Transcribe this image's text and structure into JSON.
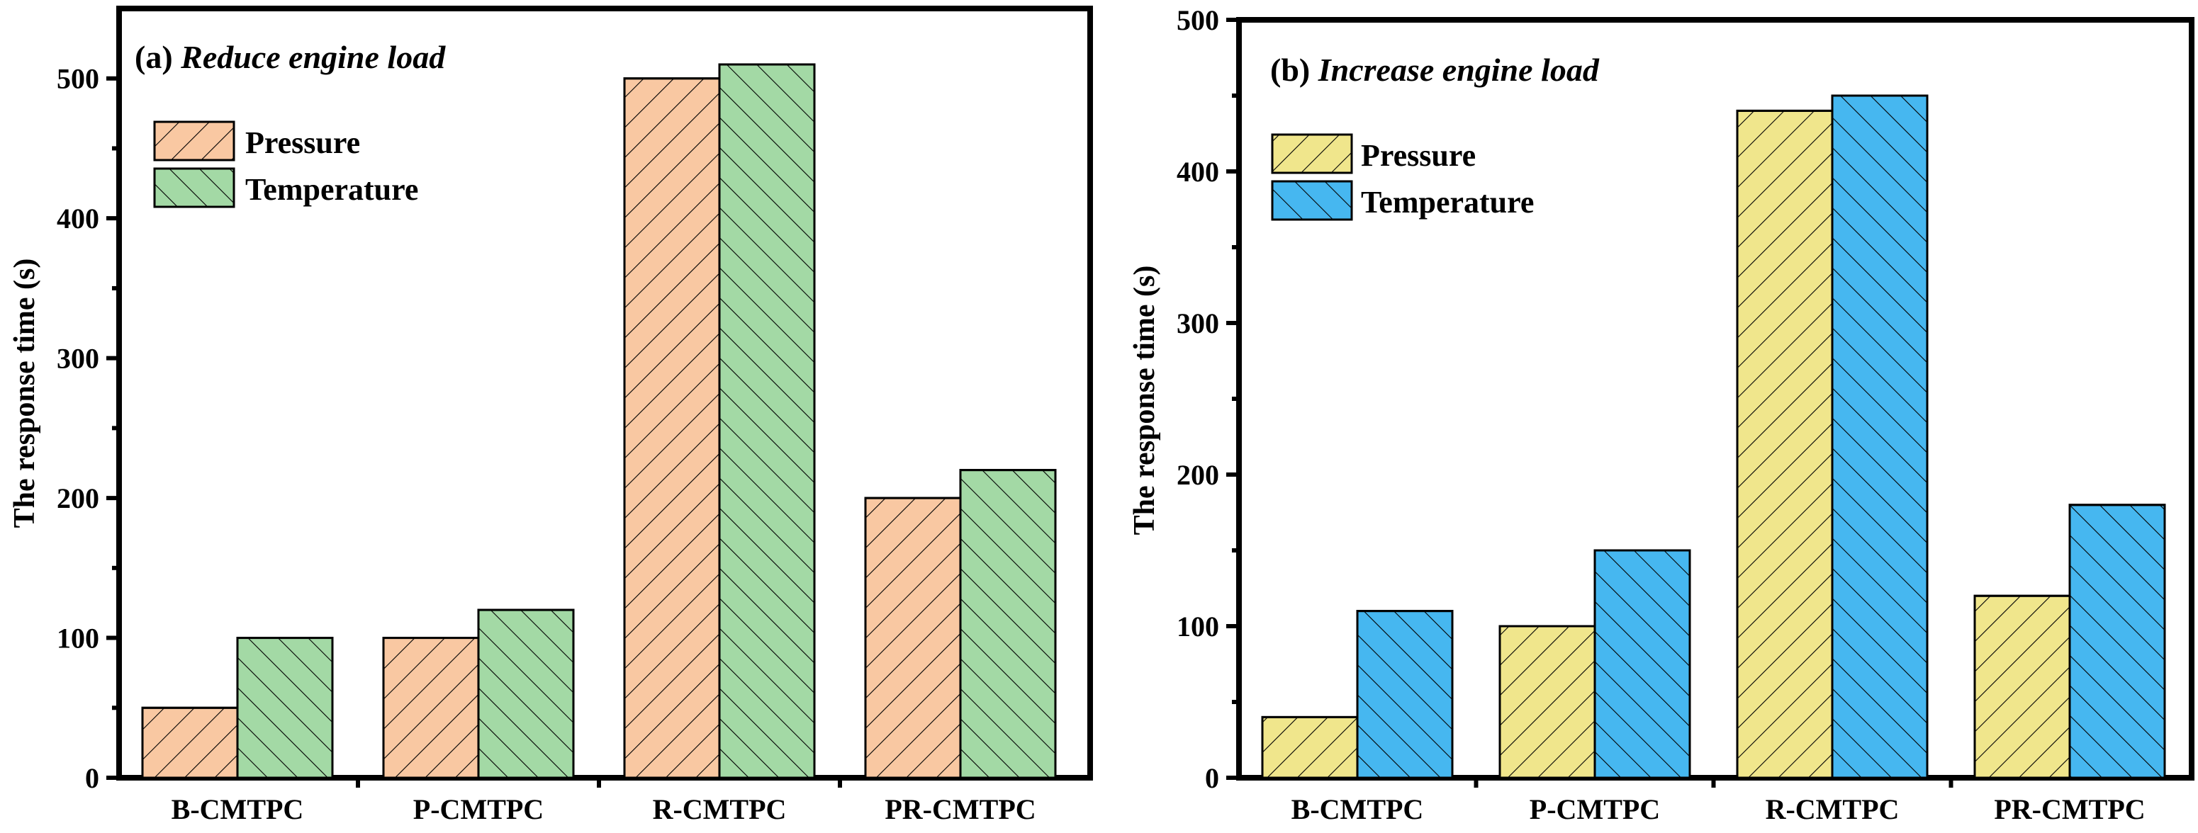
{
  "chart_data": [
    {
      "type": "bar",
      "panel": "a",
      "title_prefix": "(a)",
      "title_italic": "Reduce engine load",
      "ylabel": "The response time (s)",
      "xlabel": "",
      "ylim": [
        0,
        550
      ],
      "yticks": [
        0,
        100,
        200,
        300,
        400,
        500
      ],
      "categories": [
        "B-CMTPC",
        "P-CMTPC",
        "R-CMTPC",
        "PR-CMTPC"
      ],
      "series": [
        {
          "name": "Pressure",
          "values": [
            50,
            100,
            500,
            200
          ],
          "color": "#f9c8a2",
          "hatch": "forward"
        },
        {
          "name": "Temperature",
          "values": [
            100,
            120,
            510,
            220
          ],
          "color": "#a3d9a5",
          "hatch": "back"
        }
      ],
      "legend_position": "top-left"
    },
    {
      "type": "bar",
      "panel": "b",
      "title_prefix": "(b)",
      "title_italic": "Increase engine load",
      "ylabel": "The response time (s)",
      "xlabel": "",
      "ylim": [
        0,
        500
      ],
      "yticks": [
        0,
        100,
        200,
        300,
        400,
        500
      ],
      "categories": [
        "B-CMTPC",
        "P-CMTPC",
        "R-CMTPC",
        "PR-CMTPC"
      ],
      "series": [
        {
          "name": "Pressure",
          "values": [
            40,
            100,
            440,
            120
          ],
          "color": "#f0e68c",
          "hatch": "forward"
        },
        {
          "name": "Temperature",
          "values": [
            110,
            150,
            450,
            180
          ],
          "color": "#46b7f0",
          "hatch": "back"
        }
      ],
      "legend_position": "top-left"
    }
  ]
}
